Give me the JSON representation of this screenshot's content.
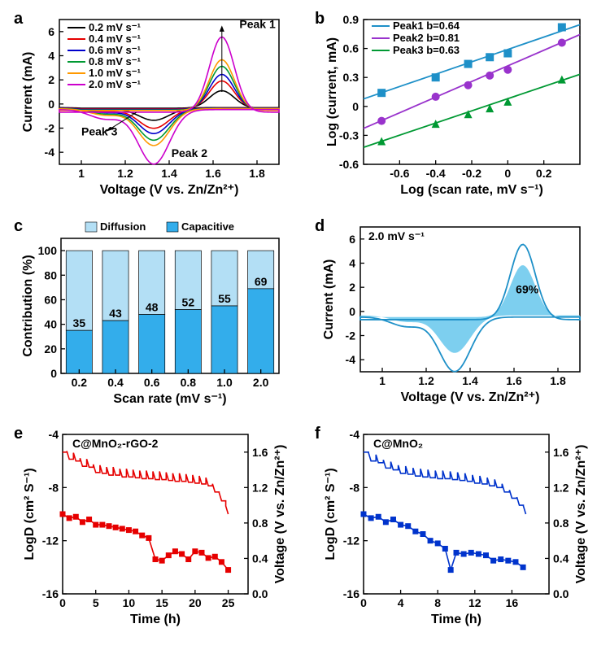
{
  "panel_a": {
    "label": "a",
    "xlabel": "Voltage (V vs. Zn/Zn²⁺)",
    "ylabel": "Current (mA)",
    "xlim": [
      0.9,
      1.9
    ],
    "xticks": [
      1.0,
      1.2,
      1.4,
      1.6,
      1.8
    ],
    "ylim": [
      -5,
      7
    ],
    "yticks": [
      -4,
      -2,
      0,
      2,
      4,
      6
    ],
    "legend": [
      "0.2 mV s⁻¹",
      "0.4 mV s⁻¹",
      "0.6 mV s⁻¹",
      "0.8 mV s⁻¹",
      "1.0 mV s⁻¹",
      "2.0 mV s⁻¹"
    ],
    "legend_colors": [
      "#000000",
      "#e60000",
      "#0000cc",
      "#009933",
      "#ff9900",
      "#cc00cc"
    ],
    "peak_labels": [
      "Peak 1",
      "Peak 2",
      "Peak 3"
    ],
    "curves": [
      {
        "color": "#000000",
        "amp": 1.0
      },
      {
        "color": "#e60000",
        "amp": 1.6
      },
      {
        "color": "#0000cc",
        "amp": 2.0
      },
      {
        "color": "#009933",
        "amp": 2.5
      },
      {
        "color": "#ff9900",
        "amp": 2.9
      },
      {
        "color": "#cc00cc",
        "amp": 4.3
      }
    ],
    "line_width": 1.6
  },
  "panel_b": {
    "label": "b",
    "xlabel": "Log (scan rate, mV s⁻¹)",
    "ylabel": "Log (current, mA)",
    "xlim": [
      -0.8,
      0.4
    ],
    "xticks": [
      -0.6,
      -0.4,
      -0.2,
      0,
      0.2
    ],
    "ylim": [
      -0.6,
      0.9
    ],
    "yticks": [
      -0.6,
      -0.3,
      0,
      0.3,
      0.6,
      0.9
    ],
    "series": [
      {
        "label": "Peak1 b=0.64",
        "color": "#1e90c8",
        "marker": "square",
        "slope": 0.64,
        "intercept": 0.59,
        "points": [
          [
            -0.7,
            0.14
          ],
          [
            -0.4,
            0.3
          ],
          [
            -0.22,
            0.44
          ],
          [
            -0.1,
            0.51
          ],
          [
            0.0,
            0.55
          ],
          [
            0.3,
            0.82
          ]
        ]
      },
      {
        "label": "Peak2 b=0.81",
        "color": "#9933cc",
        "marker": "circle",
        "slope": 0.81,
        "intercept": 0.42,
        "points": [
          [
            -0.7,
            -0.15
          ],
          [
            -0.4,
            0.1
          ],
          [
            -0.22,
            0.22
          ],
          [
            -0.1,
            0.32
          ],
          [
            0.0,
            0.38
          ],
          [
            0.3,
            0.66
          ]
        ]
      },
      {
        "label": "Peak3 b=0.63",
        "color": "#009933",
        "marker": "triangle",
        "slope": 0.63,
        "intercept": 0.08,
        "points": [
          [
            -0.7,
            -0.36
          ],
          [
            -0.4,
            -0.18
          ],
          [
            -0.22,
            -0.08
          ],
          [
            -0.1,
            -0.02
          ],
          [
            0.0,
            0.05
          ],
          [
            0.3,
            0.28
          ]
        ]
      }
    ],
    "line_width": 1.8,
    "marker_size": 5
  },
  "panel_c": {
    "label": "c",
    "xlabel": "Scan rate (mV s⁻¹)",
    "ylabel": "Contribution (%)",
    "legend": [
      "Diffusion",
      "Capacitive"
    ],
    "legend_colors": [
      "#b3dff5",
      "#33adeb"
    ],
    "categories": [
      "0.2",
      "0.4",
      "0.6",
      "0.8",
      "1.0",
      "2.0"
    ],
    "capacitive": [
      35,
      43,
      48,
      52,
      55,
      69
    ],
    "ylim": [
      0,
      110
    ],
    "yticks": [
      0,
      20,
      40,
      60,
      80,
      100
    ],
    "bar_width": 0.72
  },
  "panel_d": {
    "label": "d",
    "xlabel": "Voltage (V vs. Zn/Zn²⁺)",
    "ylabel": "Current (mA)",
    "xlim": [
      0.9,
      1.9
    ],
    "xticks": [
      1.0,
      1.2,
      1.4,
      1.6,
      1.8
    ],
    "ylim": [
      -5,
      7
    ],
    "yticks": [
      -4,
      -2,
      0,
      2,
      4,
      6
    ],
    "annot_rate": "2.0 mV s⁻¹",
    "annot_pct": "69%",
    "outer_color": "#1e90c8",
    "fill_color": "#66c7ec",
    "line_width": 1.8
  },
  "panel_e": {
    "label": "e",
    "material": "C@MnO₂-rGO-2",
    "color": "#e60000",
    "xlabel": "Time (h)",
    "ylabel_left": "LogD (cm² S⁻¹)",
    "ylabel_right": "Voltage (V vs. Zn/Zn²⁺)",
    "xlim": [
      0,
      28
    ],
    "xticks": [
      0,
      5,
      10,
      15,
      20,
      25
    ],
    "ylim_left": [
      -16,
      -4
    ],
    "yticks_left": [
      -16,
      -12,
      -8,
      -4
    ],
    "ylim_right": [
      0,
      1.8
    ],
    "yticks_right": [
      0.0,
      0.4,
      0.8,
      1.2,
      1.6
    ],
    "voltage": [
      [
        0,
        1.6
      ],
      [
        1,
        1.52
      ],
      [
        2,
        1.5
      ],
      [
        3,
        1.44
      ],
      [
        4,
        1.43
      ],
      [
        5,
        1.37
      ],
      [
        6,
        1.36
      ],
      [
        7,
        1.34
      ],
      [
        8,
        1.34
      ],
      [
        9,
        1.32
      ],
      [
        10,
        1.32
      ],
      [
        11,
        1.31
      ],
      [
        12,
        1.3
      ],
      [
        13,
        1.3
      ],
      [
        14,
        1.29
      ],
      [
        15,
        1.29
      ],
      [
        16,
        1.28
      ],
      [
        17,
        1.27
      ],
      [
        18,
        1.27
      ],
      [
        19,
        1.26
      ],
      [
        20,
        1.25
      ],
      [
        21,
        1.24
      ],
      [
        22,
        1.22
      ],
      [
        23,
        1.15
      ],
      [
        24,
        1.05
      ],
      [
        25,
        0.9
      ]
    ],
    "logD": [
      [
        0,
        -10.0
      ],
      [
        1,
        -10.3
      ],
      [
        2,
        -10.2
      ],
      [
        3,
        -10.6
      ],
      [
        4,
        -10.4
      ],
      [
        5,
        -10.8
      ],
      [
        6,
        -10.8
      ],
      [
        7,
        -10.9
      ],
      [
        8,
        -11.0
      ],
      [
        9,
        -11.1
      ],
      [
        10,
        -11.2
      ],
      [
        11,
        -11.3
      ],
      [
        12,
        -11.6
      ],
      [
        13,
        -11.8
      ],
      [
        14,
        -13.4
      ],
      [
        15,
        -13.5
      ],
      [
        16,
        -13.1
      ],
      [
        17,
        -12.8
      ],
      [
        18,
        -13.0
      ],
      [
        19,
        -13.4
      ],
      [
        20,
        -12.8
      ],
      [
        21,
        -12.9
      ],
      [
        22,
        -13.3
      ],
      [
        23,
        -13.2
      ],
      [
        24,
        -13.6
      ],
      [
        25,
        -14.2
      ]
    ],
    "line_width": 1.6,
    "marker_size": 3.5
  },
  "panel_f": {
    "label": "f",
    "material": "C@MnO₂",
    "color": "#0033cc",
    "xlabel": "Time (h)",
    "ylabel_left": "LogD (cm² S⁻¹)",
    "ylabel_right": "Voltage (V vs. Zn/Zn²⁺)",
    "xlim": [
      0,
      20
    ],
    "xticks": [
      0,
      4,
      8,
      12,
      16
    ],
    "ylim_left": [
      -16,
      -4
    ],
    "yticks_left": [
      -16,
      -12,
      -8,
      -4
    ],
    "ylim_right": [
      0,
      1.8
    ],
    "yticks_right": [
      0.0,
      0.4,
      0.8,
      1.2,
      1.6
    ],
    "voltage": [
      [
        0,
        1.6
      ],
      [
        0.8,
        1.5
      ],
      [
        1.6,
        1.48
      ],
      [
        2.4,
        1.42
      ],
      [
        3.2,
        1.4
      ],
      [
        4,
        1.36
      ],
      [
        4.8,
        1.35
      ],
      [
        5.6,
        1.33
      ],
      [
        6.4,
        1.32
      ],
      [
        7.2,
        1.31
      ],
      [
        8,
        1.3
      ],
      [
        8.8,
        1.3
      ],
      [
        9.6,
        1.29
      ],
      [
        10.4,
        1.28
      ],
      [
        11.2,
        1.27
      ],
      [
        12,
        1.25
      ],
      [
        12.8,
        1.24
      ],
      [
        13.6,
        1.22
      ],
      [
        14.4,
        1.2
      ],
      [
        15.2,
        1.15
      ],
      [
        16,
        1.08
      ],
      [
        16.8,
        1.0
      ],
      [
        17.5,
        0.9
      ]
    ],
    "logD": [
      [
        0,
        -10.0
      ],
      [
        0.8,
        -10.3
      ],
      [
        1.6,
        -10.2
      ],
      [
        2.4,
        -10.6
      ],
      [
        3.2,
        -10.4
      ],
      [
        4,
        -10.8
      ],
      [
        4.8,
        -10.9
      ],
      [
        5.6,
        -11.3
      ],
      [
        6.4,
        -11.5
      ],
      [
        7.2,
        -12.0
      ],
      [
        8,
        -12.2
      ],
      [
        8.8,
        -12.6
      ],
      [
        9.4,
        -14.2
      ],
      [
        10,
        -12.9
      ],
      [
        10.8,
        -13.0
      ],
      [
        11.6,
        -12.9
      ],
      [
        12.4,
        -13.0
      ],
      [
        13.2,
        -13.1
      ],
      [
        14,
        -13.5
      ],
      [
        14.8,
        -13.4
      ],
      [
        15.6,
        -13.5
      ],
      [
        16.4,
        -13.6
      ],
      [
        17.2,
        -14.0
      ]
    ],
    "line_width": 1.6,
    "marker_size": 3.5
  }
}
